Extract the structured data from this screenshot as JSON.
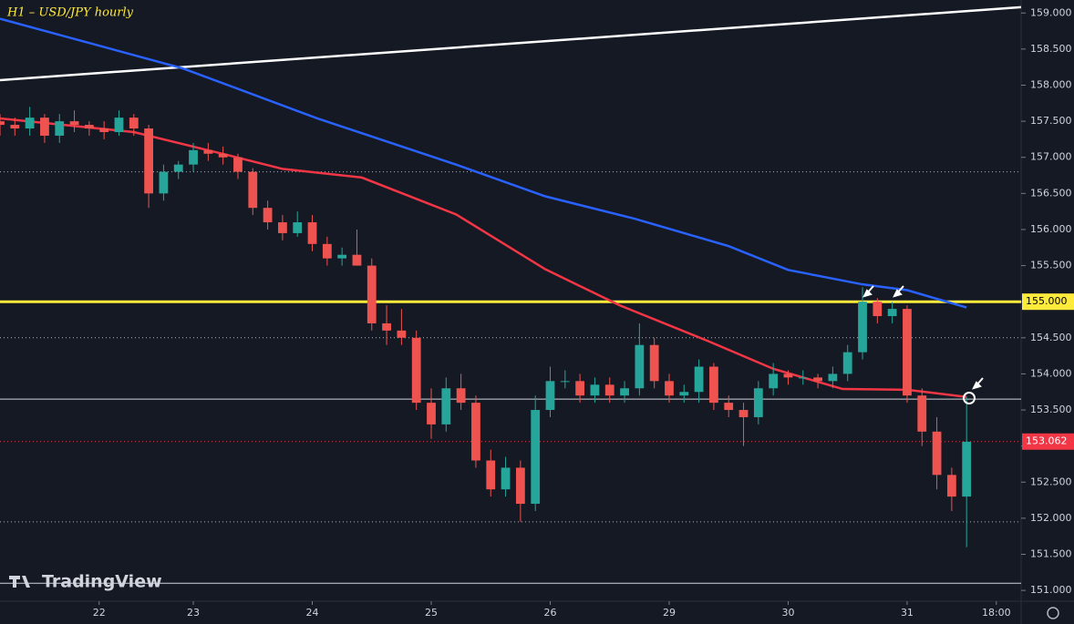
{
  "chart_data": {
    "type": "candlestick",
    "title": "H1 – USD/JPY hourly",
    "logo": "TradingView",
    "up_color": "#26a69a",
    "down_color": "#ef5350",
    "xlim": [
      0,
      206
    ],
    "ylim": [
      150.85,
      159.18
    ],
    "xticks": [
      {
        "value": 20,
        "label": "22"
      },
      {
        "value": 39,
        "label": "23"
      },
      {
        "value": 63,
        "label": "24"
      },
      {
        "value": 87,
        "label": "25"
      },
      {
        "value": 111,
        "label": "26"
      },
      {
        "value": 135,
        "label": "29"
      },
      {
        "value": 159,
        "label": "30"
      },
      {
        "value": 183,
        "label": "31"
      },
      {
        "value": 201,
        "label": "18:00"
      }
    ],
    "yticks": [
      {
        "value": 151,
        "label": "151.000"
      },
      {
        "value": 151.5,
        "label": "151.500"
      },
      {
        "value": 152,
        "label": "152.000"
      },
      {
        "value": 152.5,
        "label": "152.500"
      },
      {
        "value": 153,
        "label": "153.000"
      },
      {
        "value": 153.5,
        "label": "153.500"
      },
      {
        "value": 154,
        "label": "154.000"
      },
      {
        "value": 154.5,
        "label": "154.500"
      },
      {
        "value": 155,
        "label": "155.000"
      },
      {
        "value": 155.5,
        "label": "155.500"
      },
      {
        "value": 156,
        "label": "156.000"
      },
      {
        "value": 156.5,
        "label": "156.500"
      },
      {
        "value": 157,
        "label": "157.000"
      },
      {
        "value": 157.5,
        "label": "157.500"
      },
      {
        "value": 158,
        "label": "158.000"
      },
      {
        "value": 158.5,
        "label": "158.500"
      },
      {
        "value": 159,
        "label": "159.000"
      }
    ],
    "x": [
      0,
      3,
      6,
      9,
      12,
      15,
      18,
      21,
      24,
      27,
      30,
      33,
      36,
      39,
      42,
      45,
      48,
      51,
      54,
      57,
      60,
      63,
      66,
      69,
      72,
      75,
      78,
      81,
      84,
      87,
      90,
      93,
      96,
      99,
      102,
      105,
      108,
      111,
      114,
      117,
      120,
      123,
      126,
      129,
      132,
      135,
      138,
      141,
      144,
      147,
      150,
      153,
      156,
      159,
      162,
      165,
      168,
      171,
      174,
      177,
      180,
      183,
      186,
      189,
      192,
      195
    ],
    "open": [
      157.5,
      157.45,
      157.4,
      157.55,
      157.3,
      157.5,
      157.45,
      157.4,
      157.35,
      157.55,
      157.4,
      156.5,
      156.8,
      156.9,
      157.1,
      157.05,
      157.0,
      156.8,
      156.3,
      156.1,
      155.95,
      156.1,
      155.8,
      155.6,
      155.65,
      155.5,
      154.7,
      154.6,
      154.5,
      153.6,
      153.3,
      153.8,
      153.6,
      152.8,
      152.4,
      152.7,
      152.2,
      153.5,
      153.9,
      153.9,
      153.7,
      153.85,
      153.7,
      153.8,
      154.4,
      153.9,
      153.7,
      153.75,
      154.1,
      153.6,
      153.5,
      153.4,
      153.8,
      154.0,
      153.95,
      153.95,
      153.9,
      154.0,
      154.3,
      155.0,
      154.8,
      154.9,
      153.7,
      153.2,
      152.6,
      152.3
    ],
    "high": [
      157.6,
      157.55,
      157.7,
      157.6,
      157.6,
      157.65,
      157.5,
      157.5,
      157.65,
      157.6,
      157.45,
      156.9,
      156.95,
      157.2,
      157.2,
      157.15,
      157.05,
      156.85,
      156.4,
      156.2,
      156.25,
      156.2,
      155.9,
      155.75,
      156.0,
      155.6,
      154.95,
      154.9,
      154.6,
      153.8,
      153.95,
      154.0,
      153.7,
      152.95,
      152.85,
      152.8,
      153.7,
      154.1,
      154.05,
      154.0,
      153.95,
      153.95,
      153.9,
      154.7,
      154.5,
      154.0,
      153.85,
      154.2,
      154.15,
      153.7,
      153.6,
      153.9,
      154.15,
      154.05,
      154.05,
      154.0,
      154.1,
      154.4,
      155.2,
      155.05,
      155.0,
      154.95,
      153.8,
      153.4,
      152.7,
      153.68
    ],
    "low": [
      157.3,
      157.3,
      157.3,
      157.2,
      157.2,
      157.35,
      157.3,
      157.25,
      157.3,
      157.3,
      156.3,
      156.4,
      156.7,
      156.8,
      156.95,
      156.9,
      156.7,
      156.2,
      156.0,
      155.85,
      155.9,
      155.7,
      155.5,
      155.5,
      155.5,
      154.6,
      154.4,
      154.4,
      153.5,
      153.1,
      153.2,
      153.5,
      152.7,
      152.3,
      152.3,
      151.95,
      152.1,
      153.4,
      153.8,
      153.6,
      153.6,
      153.6,
      153.6,
      153.7,
      153.8,
      153.6,
      153.6,
      153.6,
      153.5,
      153.4,
      153.0,
      153.3,
      153.7,
      153.85,
      153.85,
      153.8,
      153.8,
      153.9,
      154.2,
      154.7,
      154.7,
      153.6,
      153.0,
      152.4,
      152.1,
      151.6
    ],
    "close": [
      157.45,
      157.4,
      157.55,
      157.3,
      157.5,
      157.45,
      157.4,
      157.35,
      157.55,
      157.4,
      156.5,
      156.8,
      156.9,
      157.1,
      157.05,
      157.0,
      156.8,
      156.3,
      156.1,
      155.95,
      156.1,
      155.8,
      155.6,
      155.65,
      155.5,
      154.7,
      154.6,
      154.5,
      153.6,
      153.3,
      153.8,
      153.6,
      152.8,
      152.4,
      152.7,
      152.2,
      153.5,
      153.9,
      153.9,
      153.7,
      153.85,
      153.7,
      153.8,
      154.4,
      153.9,
      153.7,
      153.75,
      154.1,
      153.6,
      153.5,
      153.4,
      153.8,
      154.0,
      153.95,
      153.95,
      153.9,
      154.0,
      154.3,
      155.0,
      154.8,
      154.9,
      153.7,
      153.2,
      152.6,
      152.3,
      153.06
    ],
    "lines": [
      {
        "color": "#ffffff",
        "x": [
          0,
          206
        ],
        "values": [
          158.07,
          159.08
        ]
      },
      {
        "color": "#2962ff",
        "x": [
          0,
          37,
          64,
          92,
          110,
          128,
          147,
          159,
          174,
          183,
          195
        ],
        "values": [
          158.92,
          158.23,
          157.54,
          156.9,
          156.46,
          156.15,
          155.77,
          155.44,
          155.24,
          155.16,
          154.92
        ]
      },
      {
        "color": "#f23645",
        "x": [
          0,
          27,
          46,
          57,
          73,
          92,
          110,
          125,
          143,
          156,
          170,
          183,
          195
        ],
        "values": [
          157.54,
          157.35,
          157.03,
          156.84,
          156.72,
          156.21,
          155.45,
          154.95,
          154.45,
          154.07,
          153.79,
          153.78,
          153.68
        ]
      }
    ],
    "hlines": [
      {
        "value": 156.8,
        "color": "#b2b5be",
        "style": "dotted"
      },
      {
        "value": 154.5,
        "color": "#b2b5be",
        "style": "dotted"
      },
      {
        "value": 153.65,
        "color": "#d1d4dc",
        "style": "solid"
      },
      {
        "value": 151.95,
        "color": "#b2b5be",
        "style": "dotted"
      },
      {
        "value": 151.1,
        "color": "#d1d4dc",
        "style": "solid"
      }
    ],
    "levels": [
      {
        "value": 155,
        "label": "155.000",
        "color": "#ffeb3b"
      },
      {
        "value": 153.062,
        "label": "153.062",
        "color": "#f23645"
      }
    ]
  }
}
